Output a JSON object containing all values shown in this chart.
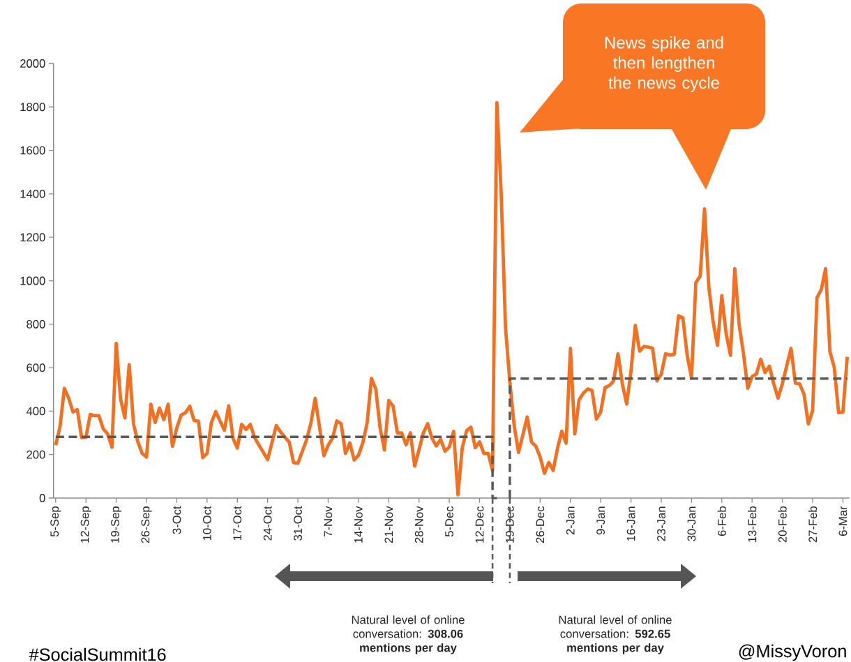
{
  "chart_data": {
    "type": "line",
    "categories": [
      "5-Sep",
      null,
      null,
      null,
      null,
      null,
      null,
      "12-Sep",
      null,
      null,
      null,
      null,
      null,
      null,
      "19-Sep",
      null,
      null,
      null,
      null,
      null,
      null,
      "26-Sep",
      null,
      null,
      null,
      null,
      null,
      null,
      "3-Oct",
      null,
      null,
      null,
      null,
      null,
      null,
      "10-Oct",
      null,
      null,
      null,
      null,
      null,
      null,
      "17-Oct",
      null,
      null,
      null,
      null,
      null,
      null,
      "24-Oct",
      null,
      null,
      null,
      null,
      null,
      null,
      "31-Oct",
      null,
      null,
      null,
      null,
      null,
      null,
      "7-Nov",
      null,
      null,
      null,
      null,
      null,
      null,
      "14-Nov",
      null,
      null,
      null,
      null,
      null,
      null,
      "21-Nov",
      null,
      null,
      null,
      null,
      null,
      null,
      "28-Nov",
      null,
      null,
      null,
      null,
      null,
      null,
      "5-Dec",
      null,
      null,
      null,
      null,
      null,
      null,
      "12-Dec",
      null,
      null,
      null,
      null,
      null,
      null,
      "19-Dec",
      null,
      null,
      null,
      null,
      null,
      null,
      "26-Dec",
      null,
      null,
      null,
      null,
      null,
      null,
      "2-Jan",
      null,
      null,
      null,
      null,
      null,
      null,
      "9-Jan",
      null,
      null,
      null,
      null,
      null,
      null,
      "16-Jan",
      null,
      null,
      null,
      null,
      null,
      null,
      "23-Jan",
      null,
      null,
      null,
      null,
      null,
      null,
      "30-Jan",
      null,
      null,
      null,
      null,
      null,
      null,
      "6-Feb",
      null,
      null,
      null,
      null,
      null,
      null,
      "13-Feb",
      null,
      null,
      null,
      null,
      null,
      null,
      "20-Feb",
      null,
      null,
      null,
      null,
      null,
      null,
      "27-Feb",
      null,
      null,
      null,
      null,
      null,
      null,
      "6-Mar",
      null
    ],
    "ylim": [
      0,
      2000
    ],
    "yticks": [
      0,
      200,
      400,
      600,
      800,
      1000,
      1200,
      1400,
      1600,
      1800,
      2000
    ],
    "series": [
      {
        "color": "#f37021",
        "line_style": "solid",
        "values": [
          243,
          328,
          505,
          460,
          396,
          407,
          278,
          280,
          385,
          379,
          379,
          318,
          296,
          234,
          712,
          457,
          369,
          614,
          341,
          259,
          205,
          189,
          432,
          348,
          414,
          361,
          432,
          238,
          323,
          382,
          393,
          423,
          357,
          354,
          186,
          205,
          347,
          398,
          355,
          312,
          425,
          275,
          230,
          339,
          316,
          339,
          278,
          243,
          210,
          177,
          255,
          334,
          304,
          280,
          257,
          163,
          160,
          214,
          268,
          345,
          459,
          327,
          195,
          243,
          275,
          355,
          342,
          205,
          254,
          175,
          197,
          254,
          345,
          551,
          503,
          323,
          221,
          449,
          423,
          300,
          300,
          245,
          300,
          147,
          223,
          300,
          342,
          275,
          240,
          270,
          216,
          235,
          307,
          15,
          232,
          310,
          326,
          232,
          259,
          205,
          205,
          127,
          1820,
          1400,
          783,
          533,
          333,
          210,
          290,
          373,
          258,
          239,
          189,
          114,
          164,
          127,
          227,
          308,
          252,
          689,
          295,
          452,
          483,
          502,
          495,
          364,
          396,
          508,
          518,
          539,
          664,
          526,
          433,
          583,
          795,
          676,
          698,
          695,
          689,
          539,
          570,
          664,
          658,
          662,
          839,
          829,
          655,
          553,
          992,
          1021,
          1331,
          971,
          810,
          703,
          931,
          757,
          657,
          1056,
          799,
          666,
          505,
          559,
          571,
          639,
          578,
          607,
          526,
          460,
          526,
          608,
          689,
          529,
          525,
          478,
          341,
          403,
          922,
          960,
          1056,
          674,
          601,
          393,
          396,
          650
        ]
      },
      {
        "type": "step",
        "color": "#595959",
        "line_style": "dashed",
        "values": [
          282,
          282,
          282,
          282,
          282,
          282,
          282,
          282,
          282,
          282,
          282,
          282,
          282,
          282,
          282,
          282,
          282,
          282,
          282,
          282,
          282,
          282,
          282,
          282,
          282,
          282,
          282,
          282,
          282,
          282,
          282,
          282,
          282,
          282,
          282,
          282,
          282,
          282,
          282,
          282,
          282,
          282,
          282,
          282,
          282,
          282,
          282,
          282,
          282,
          282,
          282,
          282,
          282,
          282,
          282,
          282,
          282,
          282,
          282,
          282,
          282,
          282,
          282,
          282,
          282,
          282,
          282,
          282,
          282,
          282,
          282,
          282,
          282,
          282,
          282,
          282,
          282,
          282,
          282,
          282,
          282,
          282,
          282,
          282,
          282,
          282,
          282,
          282,
          282,
          282,
          282,
          282,
          282,
          282,
          282,
          282,
          282,
          282,
          282,
          282,
          282,
          282,
          0,
          null,
          null,
          null,
          null,
          null,
          null,
          null,
          null,
          null,
          null,
          null,
          null,
          null,
          null,
          null,
          null,
          null,
          null,
          null,
          null,
          null,
          null,
          null,
          null,
          null,
          null,
          null,
          null,
          null,
          null,
          null,
          null,
          null,
          null,
          null,
          null,
          null,
          null,
          null,
          null,
          null,
          null,
          null,
          null,
          null,
          null,
          null,
          null,
          null,
          null,
          null,
          null,
          null,
          null,
          null,
          null,
          null,
          null,
          null,
          null,
          null,
          null,
          null,
          null,
          null,
          null,
          null,
          null,
          null,
          null,
          null,
          null,
          null,
          null,
          null,
          null,
          null,
          null,
          null,
          null,
          null
        ]
      },
      {
        "type": "step",
        "color": "#595959",
        "line_style": "dashed",
        "values": [
          null,
          null,
          null,
          null,
          null,
          null,
          null,
          null,
          null,
          null,
          null,
          null,
          null,
          null,
          null,
          null,
          null,
          null,
          null,
          null,
          null,
          null,
          null,
          null,
          null,
          null,
          null,
          null,
          null,
          null,
          null,
          null,
          null,
          null,
          null,
          null,
          null,
          null,
          null,
          null,
          null,
          null,
          null,
          null,
          null,
          null,
          null,
          null,
          null,
          null,
          null,
          null,
          null,
          null,
          null,
          null,
          null,
          null,
          null,
          null,
          null,
          null,
          null,
          null,
          null,
          null,
          null,
          null,
          null,
          null,
          null,
          null,
          null,
          null,
          null,
          null,
          null,
          null,
          null,
          null,
          null,
          null,
          null,
          null,
          null,
          null,
          null,
          null,
          null,
          null,
          null,
          null,
          null,
          null,
          null,
          null,
          null,
          null,
          null,
          null,
          null,
          null,
          null,
          null,
          null,
          0,
          550,
          550,
          550,
          550,
          550,
          550,
          550,
          550,
          550,
          550,
          550,
          550,
          550,
          550,
          550,
          550,
          550,
          550,
          550,
          550,
          550,
          550,
          550,
          550,
          550,
          550,
          550,
          550,
          550,
          550,
          550,
          550,
          550,
          550,
          550,
          550,
          550,
          550,
          550,
          550,
          550,
          550,
          550,
          550,
          550,
          550,
          550,
          550,
          550,
          550,
          550,
          550,
          550,
          550,
          550,
          550,
          550,
          550,
          550,
          550,
          550,
          550,
          550,
          550,
          550,
          550,
          550,
          550,
          550,
          550,
          550,
          550,
          550,
          550,
          550,
          550,
          550,
          550
        ]
      }
    ],
    "annotations": [
      "News spike and then lengthen the news cycle",
      "Natural level of online conversation: **308.06 mentions per day**",
      "Natural level of online conversation: **592.65 mentions per day**",
      "#SocialSummit16",
      "@MissyVoron"
    ]
  }
}
